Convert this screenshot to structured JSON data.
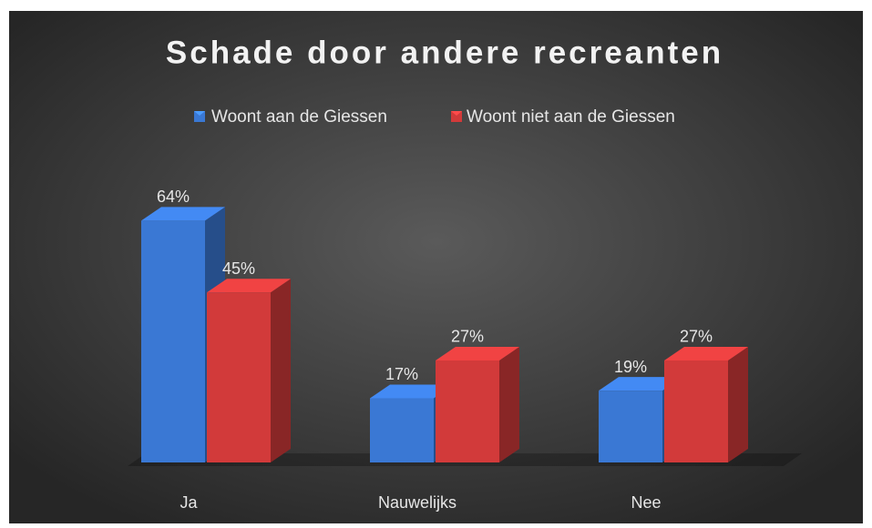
{
  "chart_data": {
    "type": "bar",
    "title": "Schade door andere recreanten",
    "categories": [
      "Ja",
      "Nauwelijks",
      "Nee"
    ],
    "series": [
      {
        "name": "Woont aan de Giessen",
        "color": "#3a78d4",
        "values": [
          64,
          17,
          19
        ],
        "value_labels": [
          "64%",
          "17%",
          "19%"
        ]
      },
      {
        "name": "Woont niet aan de Giessen",
        "color": "#d23a3a",
        "values": [
          45,
          27,
          27
        ],
        "value_labels": [
          "45%",
          "27%",
          "27%"
        ]
      }
    ],
    "legend": "top"
  }
}
